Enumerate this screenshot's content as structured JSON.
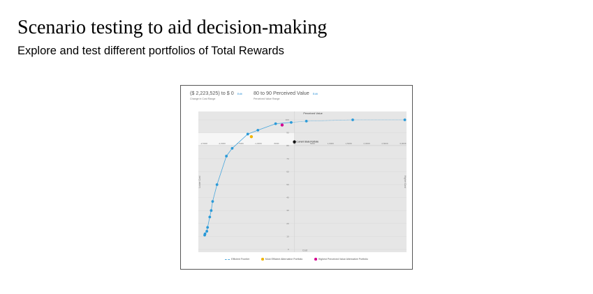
{
  "slide": {
    "title": "Scenario testing to aid decision-making",
    "subtitle": "Explore and test different portfolios of Total Rewards"
  },
  "filters": {
    "cost_range": {
      "value": "($ 2,223,525) to $ 0",
      "edit_label": "Edit",
      "caption": "Change in Cost Range"
    },
    "value_range": {
      "value": "80 to 90 Perceived Value",
      "edit_label": "Edit",
      "caption": "Perceived Value Range"
    }
  },
  "colors": {
    "line": "#4aa7dd",
    "point": "#2a9ad8",
    "most_efficient": "#f0b400",
    "highest_value": "#d4008f",
    "current": "#111111",
    "plot_bg": "#e6e6e6",
    "band": "#f6f6f6"
  },
  "chart_data": {
    "type": "line",
    "title": "Perceived Value",
    "xlabel": "Cost",
    "ylabel_left": "Lower Cost",
    "ylabel_right": "Higher Cost",
    "x_ticks": [
      "-2,500K",
      "-2,000K",
      "-1,500K",
      "-1,000K",
      "-500K",
      "0K",
      "500K",
      "1,000K",
      "1,500K",
      "2,000K",
      "2,500K",
      "3,000K"
    ],
    "y_ticks": [
      0,
      10,
      20,
      30,
      40,
      50,
      60,
      70,
      80,
      90,
      100
    ],
    "band": [
      80,
      90
    ],
    "efficient_frontier": {
      "name": "Efficient Frontier",
      "x": [
        -2480,
        -2470,
        -2420,
        -2400,
        -2340,
        -2300,
        -2260,
        -2140,
        -1880,
        -1720,
        -1290,
        -1010,
        -520,
        -90,
        330,
        1610,
        3050
      ],
      "y": [
        11,
        12,
        14,
        17,
        25,
        30,
        37,
        50,
        72,
        78,
        89,
        92,
        97,
        98,
        99,
        100,
        100
      ]
    },
    "most_efficient": {
      "name": "Most Efficient Alternative Portfolio",
      "x": -1190,
      "y": 87
    },
    "highest_value": {
      "name": "Highest Perceived Value Alternative Portfolio",
      "x": -340,
      "y": 96
    },
    "current": {
      "label": "Current State Portfolio",
      "x": 0,
      "y": 83
    }
  }
}
